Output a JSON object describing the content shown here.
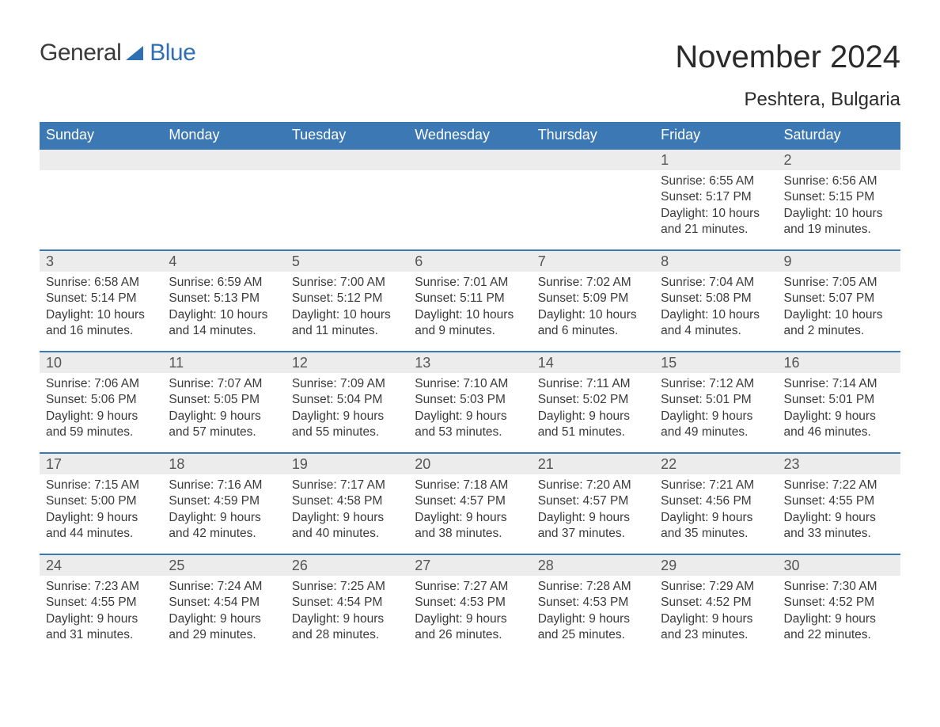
{
  "brand": {
    "part1": "General",
    "part2": "Blue"
  },
  "title": "November 2024",
  "location": "Peshtera, Bulgaria",
  "colors": {
    "header_bg": "#3c78b4",
    "header_text": "#ffffff",
    "daynum_bg": "#ececec",
    "daynum_border": "#3c78b4",
    "body_text": "#3a3a3a",
    "logo_blue": "#2f6fb3",
    "logo_dark": "#3a3a3a",
    "page_bg": "#ffffff"
  },
  "fonts": {
    "title_size_pt": 30,
    "location_size_pt": 18,
    "header_size_pt": 14,
    "daynum_size_pt": 14,
    "body_size_pt": 12
  },
  "weekdays": [
    "Sunday",
    "Monday",
    "Tuesday",
    "Wednesday",
    "Thursday",
    "Friday",
    "Saturday"
  ],
  "weeks": [
    [
      null,
      null,
      null,
      null,
      null,
      {
        "n": "1",
        "sr": "Sunrise: 6:55 AM",
        "ss": "Sunset: 5:17 PM",
        "dl": "Daylight: 10 hours and 21 minutes."
      },
      {
        "n": "2",
        "sr": "Sunrise: 6:56 AM",
        "ss": "Sunset: 5:15 PM",
        "dl": "Daylight: 10 hours and 19 minutes."
      }
    ],
    [
      {
        "n": "3",
        "sr": "Sunrise: 6:58 AM",
        "ss": "Sunset: 5:14 PM",
        "dl": "Daylight: 10 hours and 16 minutes."
      },
      {
        "n": "4",
        "sr": "Sunrise: 6:59 AM",
        "ss": "Sunset: 5:13 PM",
        "dl": "Daylight: 10 hours and 14 minutes."
      },
      {
        "n": "5",
        "sr": "Sunrise: 7:00 AM",
        "ss": "Sunset: 5:12 PM",
        "dl": "Daylight: 10 hours and 11 minutes."
      },
      {
        "n": "6",
        "sr": "Sunrise: 7:01 AM",
        "ss": "Sunset: 5:11 PM",
        "dl": "Daylight: 10 hours and 9 minutes."
      },
      {
        "n": "7",
        "sr": "Sunrise: 7:02 AM",
        "ss": "Sunset: 5:09 PM",
        "dl": "Daylight: 10 hours and 6 minutes."
      },
      {
        "n": "8",
        "sr": "Sunrise: 7:04 AM",
        "ss": "Sunset: 5:08 PM",
        "dl": "Daylight: 10 hours and 4 minutes."
      },
      {
        "n": "9",
        "sr": "Sunrise: 7:05 AM",
        "ss": "Sunset: 5:07 PM",
        "dl": "Daylight: 10 hours and 2 minutes."
      }
    ],
    [
      {
        "n": "10",
        "sr": "Sunrise: 7:06 AM",
        "ss": "Sunset: 5:06 PM",
        "dl": "Daylight: 9 hours and 59 minutes."
      },
      {
        "n": "11",
        "sr": "Sunrise: 7:07 AM",
        "ss": "Sunset: 5:05 PM",
        "dl": "Daylight: 9 hours and 57 minutes."
      },
      {
        "n": "12",
        "sr": "Sunrise: 7:09 AM",
        "ss": "Sunset: 5:04 PM",
        "dl": "Daylight: 9 hours and 55 minutes."
      },
      {
        "n": "13",
        "sr": "Sunrise: 7:10 AM",
        "ss": "Sunset: 5:03 PM",
        "dl": "Daylight: 9 hours and 53 minutes."
      },
      {
        "n": "14",
        "sr": "Sunrise: 7:11 AM",
        "ss": "Sunset: 5:02 PM",
        "dl": "Daylight: 9 hours and 51 minutes."
      },
      {
        "n": "15",
        "sr": "Sunrise: 7:12 AM",
        "ss": "Sunset: 5:01 PM",
        "dl": "Daylight: 9 hours and 49 minutes."
      },
      {
        "n": "16",
        "sr": "Sunrise: 7:14 AM",
        "ss": "Sunset: 5:01 PM",
        "dl": "Daylight: 9 hours and 46 minutes."
      }
    ],
    [
      {
        "n": "17",
        "sr": "Sunrise: 7:15 AM",
        "ss": "Sunset: 5:00 PM",
        "dl": "Daylight: 9 hours and 44 minutes."
      },
      {
        "n": "18",
        "sr": "Sunrise: 7:16 AM",
        "ss": "Sunset: 4:59 PM",
        "dl": "Daylight: 9 hours and 42 minutes."
      },
      {
        "n": "19",
        "sr": "Sunrise: 7:17 AM",
        "ss": "Sunset: 4:58 PM",
        "dl": "Daylight: 9 hours and 40 minutes."
      },
      {
        "n": "20",
        "sr": "Sunrise: 7:18 AM",
        "ss": "Sunset: 4:57 PM",
        "dl": "Daylight: 9 hours and 38 minutes."
      },
      {
        "n": "21",
        "sr": "Sunrise: 7:20 AM",
        "ss": "Sunset: 4:57 PM",
        "dl": "Daylight: 9 hours and 37 minutes."
      },
      {
        "n": "22",
        "sr": "Sunrise: 7:21 AM",
        "ss": "Sunset: 4:56 PM",
        "dl": "Daylight: 9 hours and 35 minutes."
      },
      {
        "n": "23",
        "sr": "Sunrise: 7:22 AM",
        "ss": "Sunset: 4:55 PM",
        "dl": "Daylight: 9 hours and 33 minutes."
      }
    ],
    [
      {
        "n": "24",
        "sr": "Sunrise: 7:23 AM",
        "ss": "Sunset: 4:55 PM",
        "dl": "Daylight: 9 hours and 31 minutes."
      },
      {
        "n": "25",
        "sr": "Sunrise: 7:24 AM",
        "ss": "Sunset: 4:54 PM",
        "dl": "Daylight: 9 hours and 29 minutes."
      },
      {
        "n": "26",
        "sr": "Sunrise: 7:25 AM",
        "ss": "Sunset: 4:54 PM",
        "dl": "Daylight: 9 hours and 28 minutes."
      },
      {
        "n": "27",
        "sr": "Sunrise: 7:27 AM",
        "ss": "Sunset: 4:53 PM",
        "dl": "Daylight: 9 hours and 26 minutes."
      },
      {
        "n": "28",
        "sr": "Sunrise: 7:28 AM",
        "ss": "Sunset: 4:53 PM",
        "dl": "Daylight: 9 hours and 25 minutes."
      },
      {
        "n": "29",
        "sr": "Sunrise: 7:29 AM",
        "ss": "Sunset: 4:52 PM",
        "dl": "Daylight: 9 hours and 23 minutes."
      },
      {
        "n": "30",
        "sr": "Sunrise: 7:30 AM",
        "ss": "Sunset: 4:52 PM",
        "dl": "Daylight: 9 hours and 22 minutes."
      }
    ]
  ]
}
